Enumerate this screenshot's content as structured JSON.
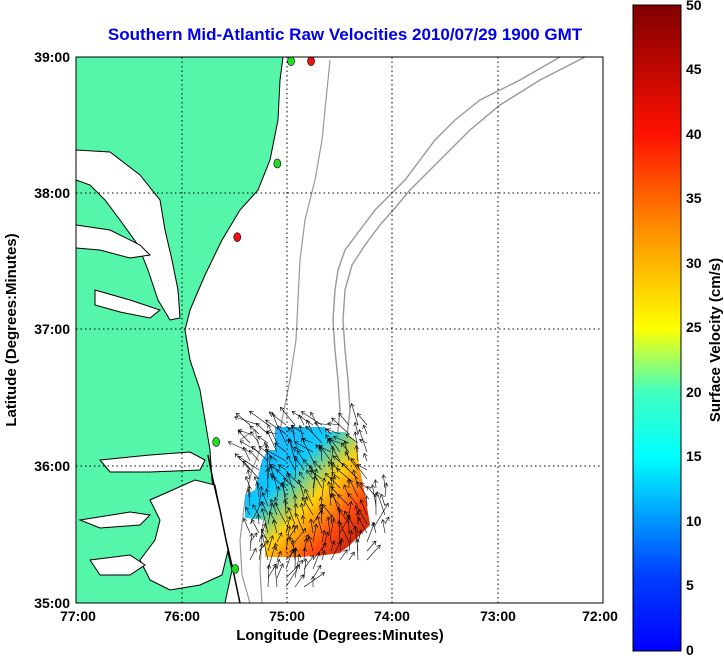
{
  "title": "Southern Mid-Atlantic Raw Velocities 2010/07/29 1900 GMT",
  "x_axis": {
    "label": "Longitude (Degrees:Minutes)",
    "ticks": [
      "77:00",
      "76:00",
      "75:00",
      "74:00",
      "73:00",
      "72:00"
    ]
  },
  "y_axis": {
    "label": "Latitude (Degrees:Minutes)",
    "ticks": [
      "39:00",
      "38:00",
      "37:00",
      "36:00",
      "35:00"
    ]
  },
  "colorbar": {
    "label": "Surface Velocity (cm/s)",
    "ticks": [
      "50",
      "45",
      "40",
      "35",
      "30",
      "25",
      "20",
      "15",
      "10",
      "5",
      "0"
    ],
    "min": 0,
    "max": 50,
    "colormap": "jet"
  },
  "colors": {
    "land": "#55f5aa",
    "coastline": "#000000",
    "bathymetry": "#999999",
    "title": "#0000ee",
    "grid": "#000000",
    "station_green": "#22dd22",
    "station_red": "#ee1111"
  },
  "map": {
    "lon_range": [
      -77,
      -72
    ],
    "lat_range": [
      35,
      39
    ],
    "grid": "dotted"
  },
  "stations": [
    {
      "lon": -74.77,
      "lat": 38.97,
      "color": "red"
    },
    {
      "lon": -74.96,
      "lat": 38.97,
      "color": "green"
    },
    {
      "lon": -75.09,
      "lat": 38.22,
      "color": "green"
    },
    {
      "lon": -75.47,
      "lat": 37.68,
      "color": "red"
    },
    {
      "lon": -75.67,
      "lat": 36.18,
      "color": "green"
    },
    {
      "lon": -75.49,
      "lat": 35.25,
      "color": "green"
    }
  ]
}
